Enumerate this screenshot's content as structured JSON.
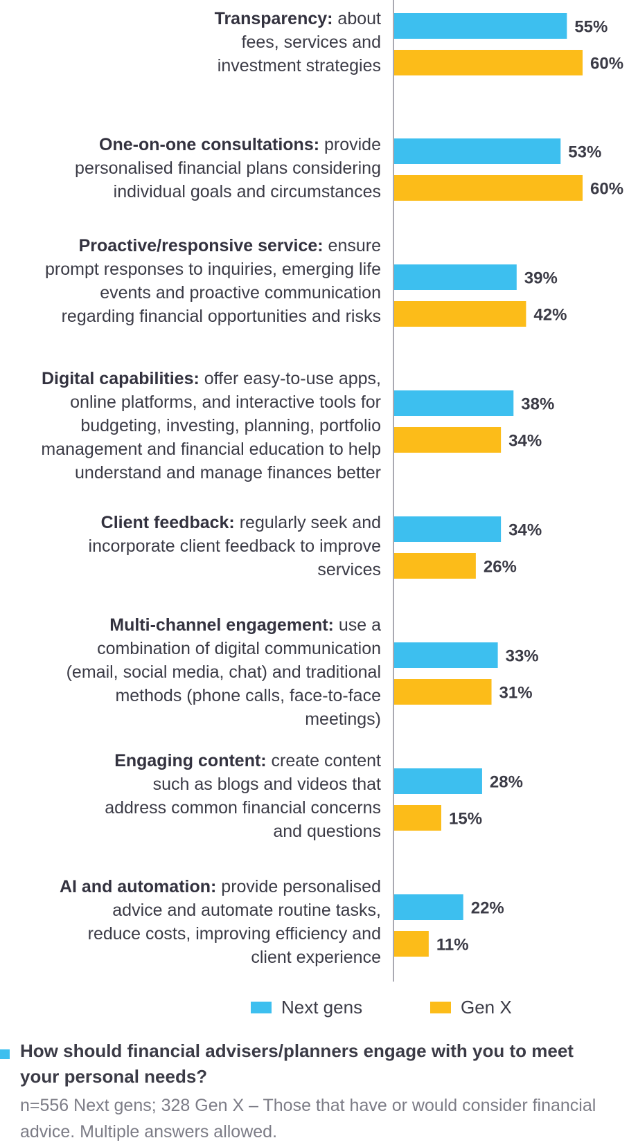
{
  "chart_data": {
    "type": "bar",
    "orientation": "horizontal",
    "categories": [
      {
        "bold": "Transparency:",
        "rest": " about fees, services and investment strategies"
      },
      {
        "bold": "One-on-one consultations:",
        "rest": " provide personalised financial plans considering individual goals and circumstances"
      },
      {
        "bold": "Proactive/responsive service:",
        "rest": " ensure prompt responses to inquiries, emerging life events and proactive communication regarding financial opportunities and risks"
      },
      {
        "bold": "Digital capabilities:",
        "rest": " offer easy-to-use apps, online platforms, and interactive tools for budgeting, investing, planning, portfolio management and financial education to help understand and manage finances better"
      },
      {
        "bold": "Client feedback:",
        "rest": " regularly seek and incorporate client feedback to improve services"
      },
      {
        "bold": "Multi-channel engagement:",
        "rest": " use a combination of digital communication (email, social media, chat) and traditional methods (phone calls, face-to-face meetings)"
      },
      {
        "bold": "Engaging content:",
        "rest": " create content such as blogs and videos that address common financial concerns and questions"
      },
      {
        "bold": "AI and automation:",
        "rest": " provide personalised advice and automate routine tasks, reduce costs, improving efficiency and client experience"
      }
    ],
    "series": [
      {
        "name": "Next gens",
        "color": "#3dbfef",
        "values": [
          55,
          53,
          39,
          38,
          34,
          33,
          28,
          22
        ]
      },
      {
        "name": "Gen X",
        "color": "#fcbc19",
        "values": [
          60,
          60,
          42,
          34,
          26,
          31,
          15,
          11
        ]
      }
    ],
    "value_suffix": "%",
    "xlim": [
      0,
      60
    ],
    "grid": false,
    "legend": "bottom"
  },
  "footer": {
    "question": "How should financial advisers/planners engage with you to meet your personal needs?",
    "note": "n=556 Next gens; 328 Gen X – Those that have or would consider financial advice. Multiple answers allowed."
  }
}
